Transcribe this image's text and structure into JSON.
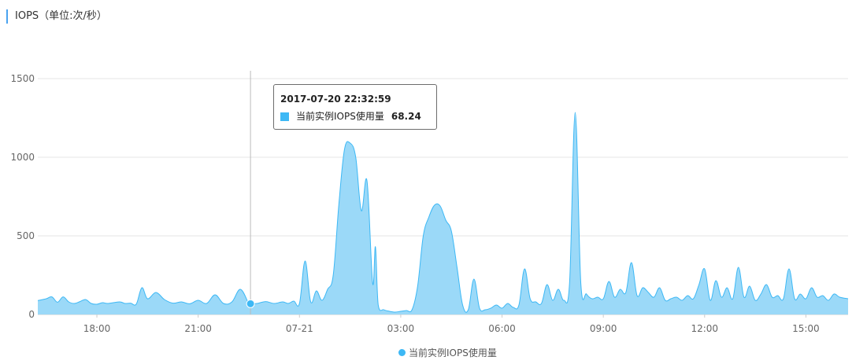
{
  "panel": {
    "title": "IOPS（单位:次/秒）"
  },
  "tooltip": {
    "time": "2017-07-20 22:32:59",
    "series_name": "当前实例IOPS使用量",
    "value": "68.24",
    "swatch_color": "#3db8f5"
  },
  "legend": {
    "items": [
      {
        "label": "当前实例IOPS使用量",
        "color": "#3db8f5"
      }
    ]
  },
  "chart_data": {
    "type": "area",
    "title": "IOPS（单位:次/秒）",
    "xlabel": "",
    "ylabel": "",
    "ylim": [
      0,
      1550
    ],
    "yticks": [
      0,
      500,
      1000,
      1500
    ],
    "xticks": [
      "18:00",
      "21:00",
      "07-21",
      "03:00",
      "06:00",
      "09:00",
      "12:00",
      "15:00"
    ],
    "x_range": [
      "2017-07-20 16:15",
      "2017-07-21 16:15"
    ],
    "grid": true,
    "legend_position": "bottom",
    "hover_time": "2017-07-20 22:32:59",
    "series": [
      {
        "name": "当前实例IOPS使用量",
        "color": "#3db8f5",
        "fill": "#9bd9f8",
        "points": [
          [
            "07-20 16:15",
            88
          ],
          [
            "07-20 16:30",
            100
          ],
          [
            "07-20 16:40",
            112
          ],
          [
            "07-20 16:50",
            78
          ],
          [
            "07-20 17:00",
            112
          ],
          [
            "07-20 17:10",
            80
          ],
          [
            "07-20 17:20",
            70
          ],
          [
            "07-20 17:30",
            82
          ],
          [
            "07-20 17:40",
            95
          ],
          [
            "07-20 17:50",
            70
          ],
          [
            "07-20 18:00",
            65
          ],
          [
            "07-20 18:10",
            75
          ],
          [
            "07-20 18:20",
            70
          ],
          [
            "07-20 18:40",
            80
          ],
          [
            "07-20 18:50",
            70
          ],
          [
            "07-20 19:00",
            72
          ],
          [
            "07-20 19:10",
            66
          ],
          [
            "07-20 19:20",
            170
          ],
          [
            "07-20 19:30",
            100
          ],
          [
            "07-20 19:45",
            140
          ],
          [
            "07-20 20:00",
            95
          ],
          [
            "07-20 20:15",
            72
          ],
          [
            "07-20 20:30",
            80
          ],
          [
            "07-20 20:45",
            68
          ],
          [
            "07-20 21:00",
            90
          ],
          [
            "07-20 21:15",
            70
          ],
          [
            "07-20 21:30",
            125
          ],
          [
            "07-20 21:45",
            70
          ],
          [
            "07-20 22:00",
            80
          ],
          [
            "07-20 22:15",
            160
          ],
          [
            "07-20 22:30",
            68
          ],
          [
            "07-20 22:33",
            68.24
          ],
          [
            "07-20 22:45",
            70
          ],
          [
            "07-20 23:00",
            82
          ],
          [
            "07-20 23:15",
            70
          ],
          [
            "07-20 23:30",
            80
          ],
          [
            "07-20 23:40",
            70
          ],
          [
            "07-20 23:50",
            85
          ],
          [
            "07-21 00:00",
            70
          ],
          [
            "07-21 00:10",
            340
          ],
          [
            "07-21 00:20",
            80
          ],
          [
            "07-21 00:30",
            150
          ],
          [
            "07-21 00:40",
            90
          ],
          [
            "07-21 00:50",
            160
          ],
          [
            "07-21 01:00",
            250
          ],
          [
            "07-21 01:10",
            700
          ],
          [
            "07-21 01:20",
            1050
          ],
          [
            "07-21 01:30",
            1090
          ],
          [
            "07-21 01:40",
            1000
          ],
          [
            "07-21 01:50",
            660
          ],
          [
            "07-21 02:00",
            850
          ],
          [
            "07-21 02:10",
            200
          ],
          [
            "07-21 02:15",
            430
          ],
          [
            "07-21 02:20",
            60
          ],
          [
            "07-21 02:30",
            30
          ],
          [
            "07-21 02:40",
            20
          ],
          [
            "07-21 02:50",
            15
          ],
          [
            "07-21 03:00",
            20
          ],
          [
            "07-21 03:10",
            25
          ],
          [
            "07-21 03:20",
            30
          ],
          [
            "07-21 03:30",
            180
          ],
          [
            "07-21 03:40",
            500
          ],
          [
            "07-21 03:50",
            620
          ],
          [
            "07-21 04:00",
            695
          ],
          [
            "07-21 04:10",
            690
          ],
          [
            "07-21 04:20",
            600
          ],
          [
            "07-21 04:30",
            530
          ],
          [
            "07-21 04:40",
            300
          ],
          [
            "07-21 04:50",
            60
          ],
          [
            "07-21 05:00",
            30
          ],
          [
            "07-21 05:10",
            225
          ],
          [
            "07-21 05:20",
            40
          ],
          [
            "07-21 05:30",
            30
          ],
          [
            "07-21 05:40",
            40
          ],
          [
            "07-21 05:50",
            60
          ],
          [
            "07-21 06:00",
            40
          ],
          [
            "07-21 06:10",
            70
          ],
          [
            "07-21 06:20",
            45
          ],
          [
            "07-21 06:30",
            60
          ],
          [
            "07-21 06:40",
            290
          ],
          [
            "07-21 06:50",
            100
          ],
          [
            "07-21 07:00",
            80
          ],
          [
            "07-21 07:10",
            70
          ],
          [
            "07-21 07:20",
            190
          ],
          [
            "07-21 07:30",
            90
          ],
          [
            "07-21 07:40",
            160
          ],
          [
            "07-21 07:50",
            90
          ],
          [
            "07-21 08:00",
            200
          ],
          [
            "07-21 08:10",
            1285
          ],
          [
            "07-21 08:20",
            200
          ],
          [
            "07-21 08:30",
            130
          ],
          [
            "07-21 08:40",
            100
          ],
          [
            "07-21 08:50",
            110
          ],
          [
            "07-21 09:00",
            100
          ],
          [
            "07-21 09:10",
            210
          ],
          [
            "07-21 09:20",
            110
          ],
          [
            "07-21 09:30",
            160
          ],
          [
            "07-21 09:40",
            140
          ],
          [
            "07-21 09:50",
            330
          ],
          [
            "07-21 10:00",
            120
          ],
          [
            "07-21 10:10",
            170
          ],
          [
            "07-21 10:20",
            140
          ],
          [
            "07-21 10:30",
            110
          ],
          [
            "07-21 10:40",
            170
          ],
          [
            "07-21 10:50",
            90
          ],
          [
            "07-21 11:00",
            100
          ],
          [
            "07-21 11:10",
            110
          ],
          [
            "07-21 11:20",
            90
          ],
          [
            "07-21 11:30",
            120
          ],
          [
            "07-21 11:40",
            100
          ],
          [
            "07-21 11:50",
            190
          ],
          [
            "07-21 12:00",
            290
          ],
          [
            "07-21 12:10",
            90
          ],
          [
            "07-21 12:20",
            215
          ],
          [
            "07-21 12:30",
            110
          ],
          [
            "07-21 12:40",
            170
          ],
          [
            "07-21 12:50",
            100
          ],
          [
            "07-21 13:00",
            300
          ],
          [
            "07-21 13:10",
            110
          ],
          [
            "07-21 13:20",
            180
          ],
          [
            "07-21 13:30",
            90
          ],
          [
            "07-21 13:40",
            130
          ],
          [
            "07-21 13:50",
            190
          ],
          [
            "07-21 14:00",
            110
          ],
          [
            "07-21 14:10",
            120
          ],
          [
            "07-21 14:20",
            100
          ],
          [
            "07-21 14:30",
            290
          ],
          [
            "07-21 14:40",
            100
          ],
          [
            "07-21 14:50",
            130
          ],
          [
            "07-21 15:00",
            100
          ],
          [
            "07-21 15:10",
            170
          ],
          [
            "07-21 15:20",
            110
          ],
          [
            "07-21 15:30",
            120
          ],
          [
            "07-21 15:40",
            90
          ],
          [
            "07-21 15:50",
            130
          ],
          [
            "07-21 16:00",
            110
          ],
          [
            "07-21 16:15",
            100
          ]
        ]
      }
    ]
  }
}
